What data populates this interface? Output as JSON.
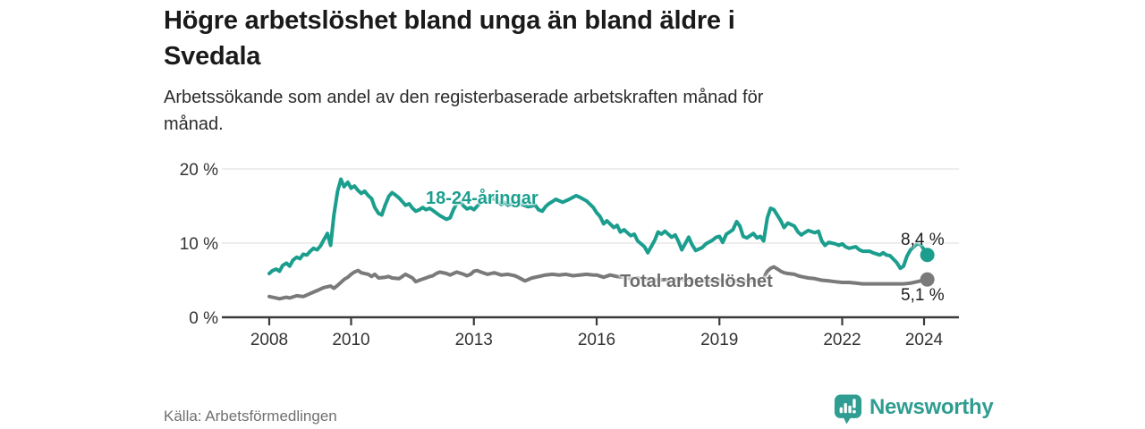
{
  "header": {
    "title_line1": "Högre arbetslöshet bland unga än bland äldre i",
    "title_line2": "Svedala",
    "subtitle_line1": "Arbetssökande som andel av den registerbaserade arbetskraften månad för",
    "subtitle_line2": "månad."
  },
  "footer": {
    "source": "Källa: Arbetsförmedlingen",
    "brand": "Newsworthy"
  },
  "colors": {
    "young_line": "#1b9e8e",
    "total_line": "#7a7a7a",
    "total_label": "#6d6d6d",
    "axis": "#3b3b3b",
    "grid": "#e2e2e2",
    "tick_text": "#333333",
    "brand_teal": "#2f9d91"
  },
  "chart_data": {
    "type": "line",
    "title": "Högre arbetslöshet bland unga än bland äldre i Svedala",
    "subtitle": "Arbetssökande som andel av den registerbaserade arbetskraften månad för månad.",
    "source": "Källa: Arbetsförmedlingen",
    "grid": "horizontal",
    "legend_position": "inline-labels",
    "x_axis": {
      "ticks": [
        2008,
        2010,
        2013,
        2016,
        2019,
        2022,
        2024
      ],
      "range": [
        2006.85,
        2024.85
      ]
    },
    "y_axis": {
      "ticks": [
        {
          "value": 0,
          "label": "0 %"
        },
        {
          "value": 10,
          "label": "10 %"
        },
        {
          "value": 20,
          "label": "20 %"
        }
      ],
      "range": [
        0,
        21
      ],
      "unit": "%"
    },
    "series": [
      {
        "name": "Total arbetslöshet",
        "color": "#7a7a7a",
        "end_label": "5,1 %",
        "end_value": 5.1,
        "points": [
          [
            2008.0,
            2.8
          ],
          [
            2008.17,
            2.6
          ],
          [
            2008.25,
            2.5
          ],
          [
            2008.42,
            2.7
          ],
          [
            2008.5,
            2.6
          ],
          [
            2008.67,
            2.9
          ],
          [
            2008.83,
            2.8
          ],
          [
            2008.92,
            3.0
          ],
          [
            2009.0,
            3.2
          ],
          [
            2009.17,
            3.6
          ],
          [
            2009.33,
            4.0
          ],
          [
            2009.5,
            4.2
          ],
          [
            2009.58,
            3.9
          ],
          [
            2009.67,
            4.3
          ],
          [
            2009.75,
            4.7
          ],
          [
            2009.83,
            5.1
          ],
          [
            2009.92,
            5.4
          ],
          [
            2010.0,
            5.8
          ],
          [
            2010.08,
            6.1
          ],
          [
            2010.17,
            6.3
          ],
          [
            2010.25,
            6.0
          ],
          [
            2010.42,
            5.8
          ],
          [
            2010.5,
            5.5
          ],
          [
            2010.58,
            5.8
          ],
          [
            2010.67,
            5.3
          ],
          [
            2010.83,
            5.4
          ],
          [
            2010.92,
            5.5
          ],
          [
            2011.0,
            5.3
          ],
          [
            2011.17,
            5.2
          ],
          [
            2011.25,
            5.5
          ],
          [
            2011.33,
            5.8
          ],
          [
            2011.5,
            5.3
          ],
          [
            2011.58,
            4.8
          ],
          [
            2011.67,
            5.0
          ],
          [
            2011.83,
            5.3
          ],
          [
            2011.92,
            5.5
          ],
          [
            2012.0,
            5.6
          ],
          [
            2012.08,
            5.9
          ],
          [
            2012.17,
            6.1
          ],
          [
            2012.33,
            5.9
          ],
          [
            2012.42,
            5.7
          ],
          [
            2012.5,
            5.9
          ],
          [
            2012.58,
            6.1
          ],
          [
            2012.75,
            5.8
          ],
          [
            2012.83,
            5.6
          ],
          [
            2012.92,
            5.8
          ],
          [
            2013.0,
            6.2
          ],
          [
            2013.08,
            6.3
          ],
          [
            2013.17,
            6.1
          ],
          [
            2013.33,
            5.8
          ],
          [
            2013.5,
            6.0
          ],
          [
            2013.67,
            5.7
          ],
          [
            2013.83,
            5.8
          ],
          [
            2014.0,
            5.6
          ],
          [
            2014.08,
            5.4
          ],
          [
            2014.25,
            4.9
          ],
          [
            2014.42,
            5.3
          ],
          [
            2014.58,
            5.5
          ],
          [
            2014.75,
            5.7
          ],
          [
            2014.92,
            5.8
          ],
          [
            2015.08,
            5.7
          ],
          [
            2015.25,
            5.8
          ],
          [
            2015.42,
            5.6
          ],
          [
            2015.58,
            5.7
          ],
          [
            2015.75,
            5.8
          ],
          [
            2015.92,
            5.7
          ],
          [
            2016.0,
            5.7
          ],
          [
            2016.17,
            5.4
          ],
          [
            2016.33,
            5.7
          ],
          [
            2016.5,
            5.5
          ],
          [
            2016.67,
            5.4
          ],
          [
            2016.83,
            5.2
          ],
          [
            2017.0,
            5.3
          ],
          [
            2017.17,
            5.1
          ],
          [
            2017.33,
            5.2
          ],
          [
            2017.5,
            5.0
          ],
          [
            2017.67,
            5.1
          ],
          [
            2017.83,
            5.0
          ],
          [
            2018.0,
            5.2
          ],
          [
            2018.17,
            5.0
          ],
          [
            2018.33,
            4.9
          ],
          [
            2018.5,
            5.0
          ],
          [
            2018.67,
            4.9
          ],
          [
            2018.83,
            4.9
          ],
          [
            2019.0,
            5.0
          ],
          [
            2019.17,
            4.9
          ],
          [
            2019.33,
            5.0
          ],
          [
            2019.5,
            4.8
          ],
          [
            2019.67,
            4.9
          ],
          [
            2019.83,
            4.9
          ],
          [
            2020.0,
            5.0
          ],
          [
            2020.08,
            5.3
          ],
          [
            2020.17,
            6.2
          ],
          [
            2020.25,
            6.6
          ],
          [
            2020.33,
            6.8
          ],
          [
            2020.42,
            6.5
          ],
          [
            2020.5,
            6.2
          ],
          [
            2020.58,
            6.0
          ],
          [
            2020.67,
            5.9
          ],
          [
            2020.83,
            5.8
          ],
          [
            2020.92,
            5.6
          ],
          [
            2021.0,
            5.5
          ],
          [
            2021.17,
            5.3
          ],
          [
            2021.33,
            5.2
          ],
          [
            2021.5,
            5.0
          ],
          [
            2021.67,
            4.9
          ],
          [
            2021.83,
            4.8
          ],
          [
            2022.0,
            4.7
          ],
          [
            2022.17,
            4.7
          ],
          [
            2022.33,
            4.6
          ],
          [
            2022.5,
            4.5
          ],
          [
            2022.67,
            4.5
          ],
          [
            2022.83,
            4.5
          ],
          [
            2023.0,
            4.5
          ],
          [
            2023.17,
            4.5
          ],
          [
            2023.33,
            4.5
          ],
          [
            2023.5,
            4.5
          ],
          [
            2023.67,
            4.6
          ],
          [
            2023.83,
            4.8
          ],
          [
            2024.0,
            5.0
          ],
          [
            2024.08,
            5.1
          ]
        ]
      },
      {
        "name": "18-24-åringar",
        "color": "#1b9e8e",
        "end_label": "8,4 %",
        "end_value": 8.4,
        "points": [
          [
            2008.0,
            5.9
          ],
          [
            2008.08,
            6.3
          ],
          [
            2008.17,
            6.5
          ],
          [
            2008.25,
            6.2
          ],
          [
            2008.33,
            7.0
          ],
          [
            2008.42,
            7.3
          ],
          [
            2008.5,
            6.9
          ],
          [
            2008.58,
            7.7
          ],
          [
            2008.67,
            8.1
          ],
          [
            2008.75,
            7.9
          ],
          [
            2008.83,
            8.5
          ],
          [
            2008.92,
            8.4
          ],
          [
            2009.0,
            8.9
          ],
          [
            2009.08,
            9.3
          ],
          [
            2009.17,
            9.1
          ],
          [
            2009.25,
            9.6
          ],
          [
            2009.33,
            10.4
          ],
          [
            2009.42,
            11.3
          ],
          [
            2009.5,
            9.7
          ],
          [
            2009.58,
            13.8
          ],
          [
            2009.67,
            17.0
          ],
          [
            2009.75,
            18.6
          ],
          [
            2009.83,
            17.6
          ],
          [
            2009.92,
            18.2
          ],
          [
            2010.0,
            17.4
          ],
          [
            2010.08,
            17.7
          ],
          [
            2010.17,
            17.1
          ],
          [
            2010.25,
            16.7
          ],
          [
            2010.33,
            17.0
          ],
          [
            2010.42,
            16.4
          ],
          [
            2010.5,
            16.0
          ],
          [
            2010.58,
            14.8
          ],
          [
            2010.67,
            14.0
          ],
          [
            2010.75,
            13.8
          ],
          [
            2010.83,
            15.1
          ],
          [
            2010.92,
            16.3
          ],
          [
            2011.0,
            16.8
          ],
          [
            2011.08,
            16.5
          ],
          [
            2011.17,
            16.1
          ],
          [
            2011.25,
            15.6
          ],
          [
            2011.33,
            15.1
          ],
          [
            2011.42,
            15.3
          ],
          [
            2011.5,
            14.7
          ],
          [
            2011.58,
            14.3
          ],
          [
            2011.67,
            14.5
          ],
          [
            2011.75,
            14.8
          ],
          [
            2011.83,
            14.5
          ],
          [
            2011.92,
            14.7
          ],
          [
            2012.0,
            14.4
          ],
          [
            2012.17,
            13.7
          ],
          [
            2012.33,
            13.2
          ],
          [
            2012.42,
            13.4
          ],
          [
            2012.5,
            14.5
          ],
          [
            2012.58,
            15.3
          ],
          [
            2012.67,
            15.5
          ],
          [
            2012.75,
            15.0
          ],
          [
            2012.83,
            14.6
          ],
          [
            2012.92,
            14.8
          ],
          [
            2013.0,
            14.5
          ],
          [
            2013.17,
            15.5
          ],
          [
            2013.25,
            16.1
          ],
          [
            2013.33,
            15.8
          ],
          [
            2013.5,
            16.0
          ],
          [
            2013.58,
            15.6
          ],
          [
            2013.67,
            15.2
          ],
          [
            2013.75,
            15.5
          ],
          [
            2013.83,
            15.1
          ],
          [
            2013.92,
            15.3
          ],
          [
            2014.0,
            15.6
          ],
          [
            2014.17,
            15.2
          ],
          [
            2014.33,
            14.9
          ],
          [
            2014.5,
            15.1
          ],
          [
            2014.58,
            14.5
          ],
          [
            2014.67,
            14.3
          ],
          [
            2014.75,
            14.9
          ],
          [
            2014.83,
            15.3
          ],
          [
            2014.92,
            15.6
          ],
          [
            2015.0,
            15.9
          ],
          [
            2015.17,
            15.5
          ],
          [
            2015.33,
            15.9
          ],
          [
            2015.5,
            16.4
          ],
          [
            2015.58,
            16.2
          ],
          [
            2015.75,
            15.7
          ],
          [
            2015.92,
            14.8
          ],
          [
            2016.0,
            14.1
          ],
          [
            2016.08,
            13.6
          ],
          [
            2016.17,
            12.6
          ],
          [
            2016.25,
            13.0
          ],
          [
            2016.42,
            12.1
          ],
          [
            2016.5,
            12.4
          ],
          [
            2016.58,
            11.5
          ],
          [
            2016.67,
            11.8
          ],
          [
            2016.83,
            11.0
          ],
          [
            2016.92,
            11.2
          ],
          [
            2017.0,
            10.3
          ],
          [
            2017.17,
            9.5
          ],
          [
            2017.25,
            8.7
          ],
          [
            2017.42,
            10.4
          ],
          [
            2017.5,
            11.5
          ],
          [
            2017.58,
            11.2
          ],
          [
            2017.67,
            11.6
          ],
          [
            2017.83,
            10.8
          ],
          [
            2017.92,
            11.1
          ],
          [
            2018.0,
            10.2
          ],
          [
            2018.08,
            9.1
          ],
          [
            2018.25,
            10.8
          ],
          [
            2018.33,
            9.8
          ],
          [
            2018.42,
            9.0
          ],
          [
            2018.58,
            9.4
          ],
          [
            2018.67,
            9.9
          ],
          [
            2018.83,
            10.4
          ],
          [
            2018.92,
            10.8
          ],
          [
            2019.0,
            10.9
          ],
          [
            2019.08,
            10.1
          ],
          [
            2019.17,
            11.2
          ],
          [
            2019.33,
            11.8
          ],
          [
            2019.42,
            12.9
          ],
          [
            2019.5,
            12.3
          ],
          [
            2019.58,
            10.9
          ],
          [
            2019.67,
            10.7
          ],
          [
            2019.83,
            11.3
          ],
          [
            2019.92,
            10.7
          ],
          [
            2020.0,
            10.9
          ],
          [
            2020.08,
            10.3
          ],
          [
            2020.17,
            13.4
          ],
          [
            2020.25,
            14.7
          ],
          [
            2020.33,
            14.5
          ],
          [
            2020.5,
            13.0
          ],
          [
            2020.58,
            12.1
          ],
          [
            2020.67,
            12.7
          ],
          [
            2020.83,
            12.3
          ],
          [
            2020.92,
            11.5
          ],
          [
            2021.0,
            11.1
          ],
          [
            2021.08,
            11.4
          ],
          [
            2021.17,
            11.7
          ],
          [
            2021.33,
            11.4
          ],
          [
            2021.42,
            11.6
          ],
          [
            2021.5,
            10.3
          ],
          [
            2021.58,
            9.7
          ],
          [
            2021.67,
            10.1
          ],
          [
            2021.83,
            9.9
          ],
          [
            2021.92,
            9.7
          ],
          [
            2022.0,
            9.9
          ],
          [
            2022.08,
            9.5
          ],
          [
            2022.17,
            9.3
          ],
          [
            2022.33,
            9.5
          ],
          [
            2022.42,
            9.1
          ],
          [
            2022.5,
            8.9
          ],
          [
            2022.67,
            8.9
          ],
          [
            2022.75,
            8.7
          ],
          [
            2022.92,
            8.4
          ],
          [
            2023.0,
            8.7
          ],
          [
            2023.08,
            8.4
          ],
          [
            2023.17,
            8.3
          ],
          [
            2023.33,
            7.4
          ],
          [
            2023.42,
            6.6
          ],
          [
            2023.5,
            6.9
          ],
          [
            2023.58,
            8.2
          ],
          [
            2023.67,
            9.1
          ],
          [
            2023.83,
            9.9
          ],
          [
            2023.92,
            9.8
          ],
          [
            2024.0,
            9.1
          ],
          [
            2024.08,
            8.4
          ]
        ]
      }
    ]
  }
}
